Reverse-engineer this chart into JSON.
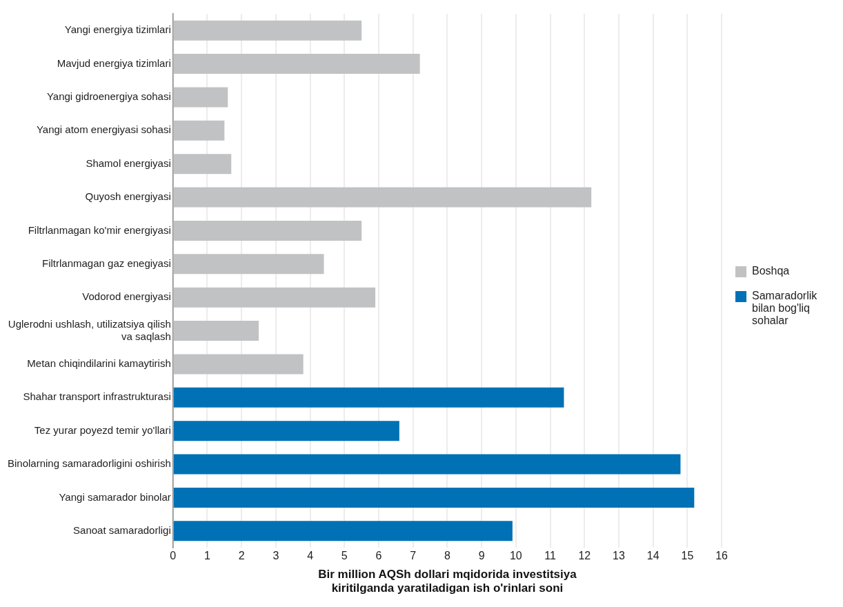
{
  "chart_data": {
    "type": "bar",
    "orientation": "horizontal",
    "xlabel": "Bir million AQSh dollari mqidorida investitsiya kiritilganda yaratiladigan ish o'rinlari soni",
    "categories": [
      "Yangi energiya tizimlari",
      "Mavjud energiya tizimlari",
      "Yangi gidroenergiya sohasi",
      "Yangi atom energiyasi sohasi",
      "Shamol energiyasi",
      "Quyosh energiyasi",
      "Filtrlanmagan ko'mir energiyasi",
      "Filtrlanmagan gaz enegiyasi",
      "Vodorod energiyasi",
      "Uglerodni ushlash, utilizatsiya qilish va saqlash",
      "Metan chiqindilarini kamaytirish",
      "Shahar transport infrastrukturasi",
      "Tez yurar poyezd temir yo'llari",
      "Binolarning samaradorligini oshirish",
      "Yangi samarador binolar",
      "Sanoat samaradorligi"
    ],
    "series": [
      {
        "name": "Boshqa",
        "color": "#c1c2c4",
        "values": [
          5.5,
          7.2,
          1.6,
          1.5,
          1.7,
          12.2,
          5.5,
          4.4,
          5.9,
          2.5,
          3.8,
          null,
          null,
          null,
          null,
          null
        ]
      },
      {
        "name": "Samaradorlik bilan bog'liq sohalar",
        "color": "#0071b5",
        "values": [
          null,
          null,
          null,
          null,
          null,
          null,
          null,
          null,
          null,
          null,
          null,
          11.4,
          6.6,
          14.8,
          15.2,
          9.9
        ]
      }
    ],
    "xlim": [
      0,
      16
    ],
    "xticks": [
      0,
      1,
      2,
      3,
      4,
      5,
      6,
      7,
      8,
      9,
      10,
      11,
      12,
      13,
      14,
      15,
      16
    ],
    "grid": "x",
    "legend": "right"
  }
}
